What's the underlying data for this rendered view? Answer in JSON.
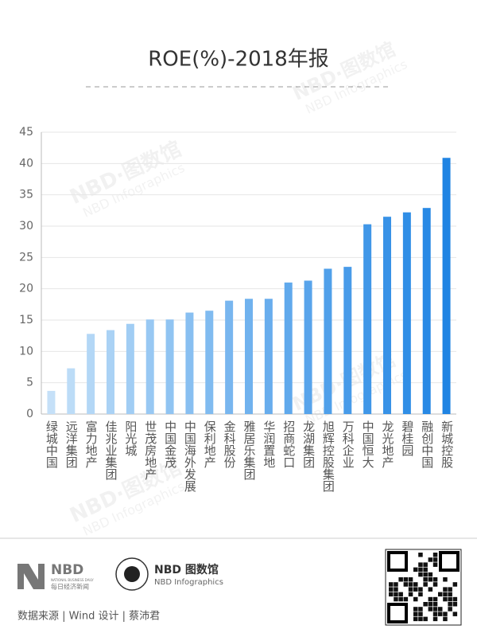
{
  "chart_data": {
    "type": "bar",
    "title": "ROE(%)-2018年报",
    "categories": [
      "绿城中国",
      "远洋集团",
      "富力地产",
      "佳兆业集团",
      "阳光城",
      "世茂房地产",
      "中国金茂",
      "中国海外发展",
      "保利地产",
      "金科股份",
      "雅居乐集团",
      "华润置地",
      "招商蛇口",
      "龙湖集团",
      "旭辉控股集团",
      "万科企业",
      "中国恒大",
      "龙光地产",
      "碧桂园",
      "融创中国",
      "新城控股"
    ],
    "values": [
      3.7,
      7.3,
      12.8,
      13.4,
      14.4,
      15.1,
      15.1,
      16.2,
      16.5,
      18.1,
      18.4,
      18.4,
      21.0,
      21.3,
      23.2,
      23.5,
      30.3,
      31.5,
      32.2,
      32.9,
      40.9
    ],
    "colors": [
      "#c5e0f8",
      "#bcdcf7",
      "#b3d7f6",
      "#aad2f5",
      "#a1cdf4",
      "#98c8f3",
      "#90c4f2",
      "#88bff1",
      "#80bbf0",
      "#78b6ef",
      "#70b2ee",
      "#68aded",
      "#60a9ec",
      "#58a4eb",
      "#50a0ea",
      "#489be9",
      "#4097e8",
      "#3892e7",
      "#308ee6",
      "#2889e5",
      "#2084e3"
    ],
    "ylim": [
      0,
      45
    ],
    "yticks": [
      0,
      5,
      10,
      15,
      20,
      25,
      30,
      35,
      40,
      45
    ],
    "grid": true
  },
  "footer": {
    "nbd": "NBD",
    "nbd_en": "NATIONAL BUSINESS DAILY",
    "nbd_cn": "每日经济新闻",
    "infographics_cn": "NBD 图数馆",
    "infographics_en": "NBD Infographics",
    "source": "数据来源 | Wind  设计 | 蔡沛君"
  },
  "watermarks": [
    "NBD·图数馆",
    "NBD Infographics"
  ]
}
